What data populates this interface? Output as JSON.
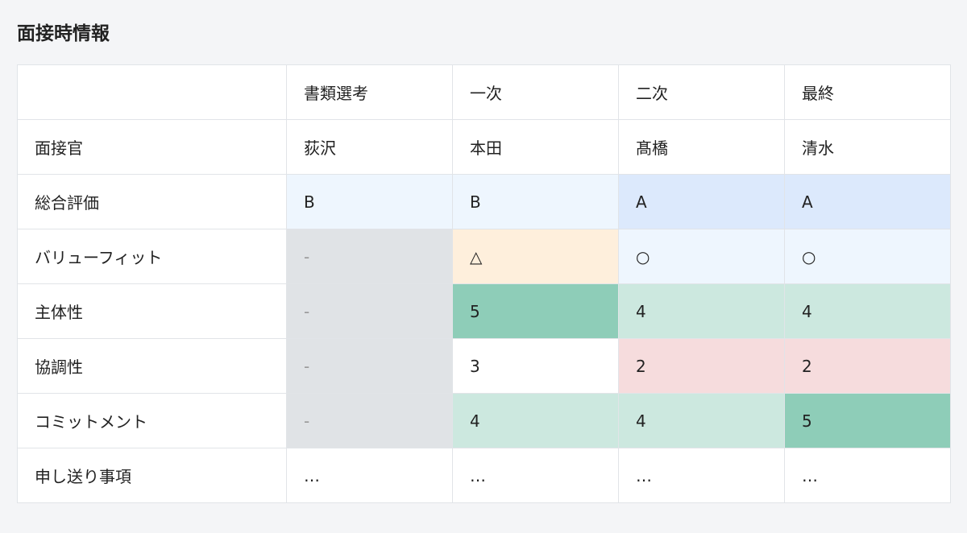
{
  "title": "面接時情報",
  "columns": [
    "",
    "書類選考",
    "一次",
    "二次",
    "最終"
  ],
  "rows": [
    {
      "label": "面接官",
      "values": [
        "荻沢",
        "本田",
        "髙橋",
        "清水"
      ]
    },
    {
      "label": "総合評価",
      "values": [
        "B",
        "B",
        "A",
        "A"
      ]
    },
    {
      "label": "バリューフィット",
      "values": [
        "-",
        "△",
        "○",
        "○"
      ]
    },
    {
      "label": "主体性",
      "values": [
        "-",
        "5",
        "4",
        "4"
      ]
    },
    {
      "label": "協調性",
      "values": [
        "-",
        "3",
        "2",
        "2"
      ]
    },
    {
      "label": "コミットメント",
      "values": [
        "-",
        "4",
        "4",
        "5"
      ]
    },
    {
      "label": "申し送り事項",
      "values": [
        "…",
        "…",
        "…",
        "…"
      ]
    }
  ],
  "colors": {
    "na": "#e0e3e6",
    "grade_b": "#eef6fe",
    "grade_a": "#dce9fc",
    "triangle": "#feefdc",
    "score5": "#8ecdb8",
    "score4": "#cce8df",
    "score2": "#f6dcdd"
  }
}
